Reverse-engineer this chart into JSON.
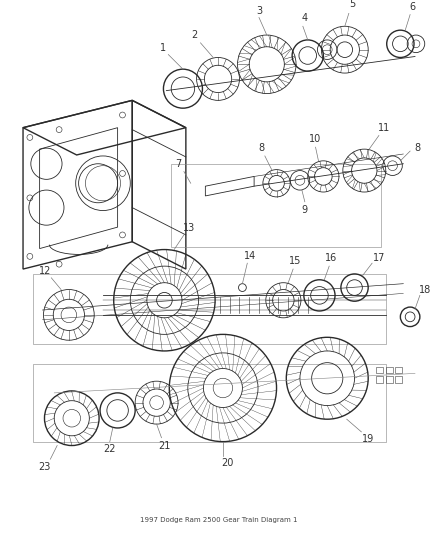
{
  "background_color": "#ffffff",
  "line_color": "#2a2a2a",
  "label_color": "#333333",
  "fig_width": 4.39,
  "fig_height": 5.33,
  "dpi": 100
}
